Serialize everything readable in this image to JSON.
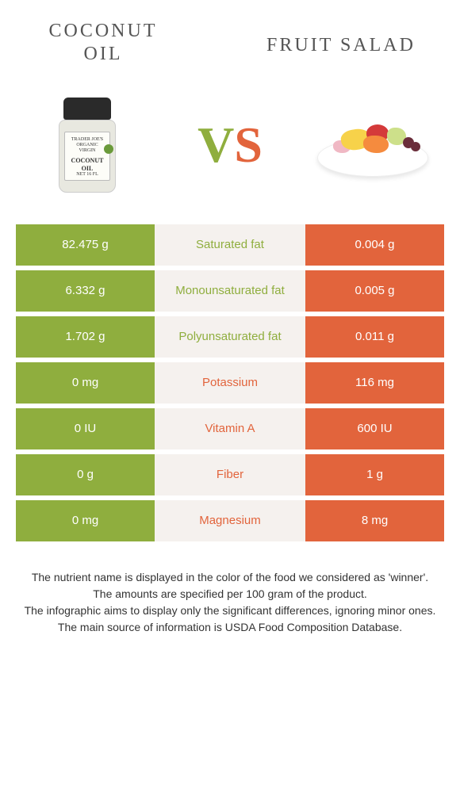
{
  "header": {
    "left_title": "COCONUT OIL",
    "right_title": "FRUIT SALAD",
    "vs_v": "V",
    "vs_s": "S"
  },
  "colors": {
    "green": "#8fae3e",
    "orange": "#e2643c",
    "mid_bg": "#f5f1ee",
    "text": "#333333"
  },
  "jar": {
    "brand": "TRADER JOE'S",
    "line1": "ORGANIC",
    "line2": "VIRGIN",
    "product": "COCONUT OIL",
    "size": "NET 16 FL"
  },
  "rows": [
    {
      "left": "82.475 g",
      "label": "Saturated fat",
      "right": "0.004 g",
      "winner": "left"
    },
    {
      "left": "6.332 g",
      "label": "Monounsaturated fat",
      "right": "0.005 g",
      "winner": "left"
    },
    {
      "left": "1.702 g",
      "label": "Polyunsaturated fat",
      "right": "0.011 g",
      "winner": "left"
    },
    {
      "left": "0 mg",
      "label": "Potassium",
      "right": "116 mg",
      "winner": "right"
    },
    {
      "left": "0 IU",
      "label": "Vitamin A",
      "right": "600 IU",
      "winner": "right"
    },
    {
      "left": "0 g",
      "label": "Fiber",
      "right": "1 g",
      "winner": "right"
    },
    {
      "left": "0 mg",
      "label": "Magnesium",
      "right": "8 mg",
      "winner": "right"
    }
  ],
  "footer": {
    "line1": "The nutrient name is displayed in the color of the food we considered as 'winner'.",
    "line2": "The amounts are specified per 100 gram of the product.",
    "line3": "The infographic aims to display only the significant differences, ignoring minor ones.",
    "line4": "The main source of information is USDA Food Composition Database."
  }
}
